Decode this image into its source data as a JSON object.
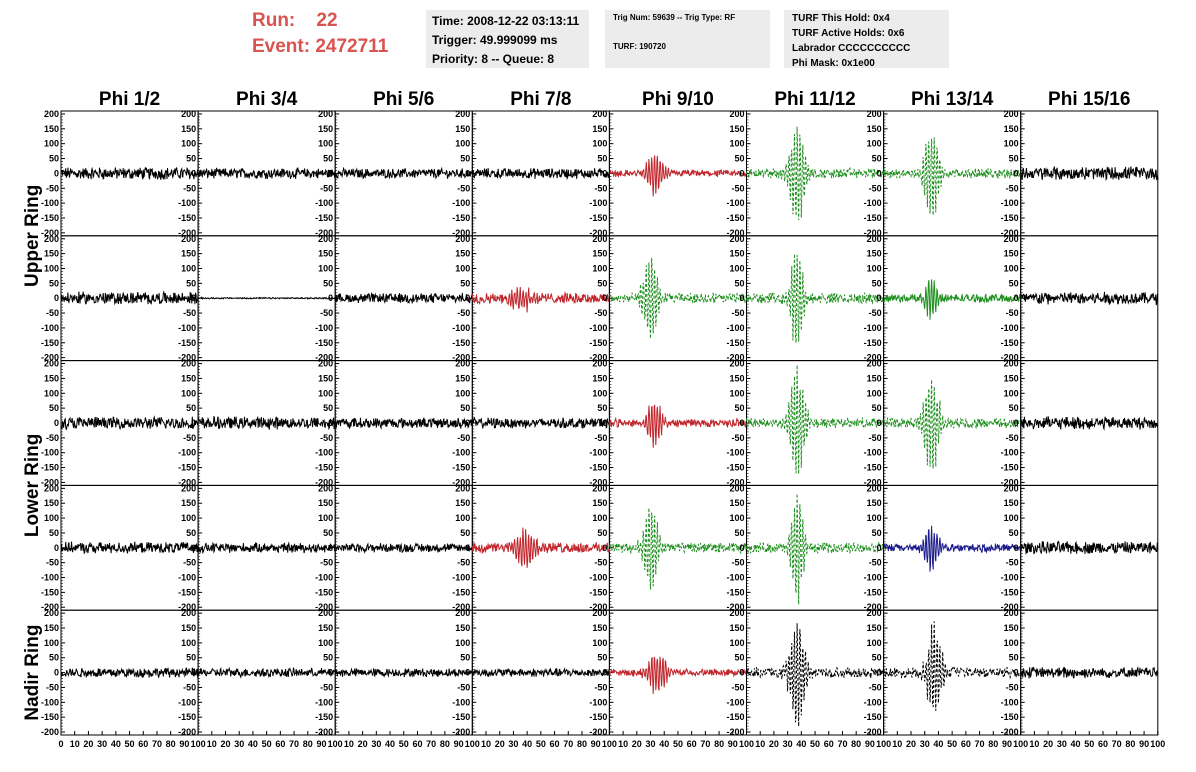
{
  "header": {
    "run_label": "Run:",
    "run_value": "22",
    "event_label": "Event:",
    "event_value": "2472711",
    "time_box": [
      "Time: 2008-12-22 03:13:11",
      "Trigger: 49.999099 ms",
      "Priority: 8 -- Queue: 8"
    ],
    "trig_box": [
      "Trig Num: 59639 -- Trig Type: RF",
      "TURF: 190720"
    ],
    "turf_box": [
      "TURF This Hold: 0x4",
      "TURF Active Holds: 0x6",
      "Labrador CCCCCCCCCC",
      "Phi Mask: 0x1e00"
    ]
  },
  "colors": {
    "black": "#000000",
    "red": "#c0262c",
    "green": "#1f8f1f",
    "blue": "#1a1a8c",
    "header_red": "#d9534f",
    "box_bg": "#ececec"
  },
  "chart_data": {
    "type": "line",
    "columns": [
      "Phi 1/2",
      "Phi 3/4",
      "Phi 5/6",
      "Phi 7/8",
      "Phi 9/10",
      "Phi 11/12",
      "Phi 13/14",
      "Phi 15/16"
    ],
    "row_labels": [
      "Upper Ring",
      "Lower Ring",
      "Nadir Ring"
    ],
    "rows_per_label": [
      2,
      2,
      1
    ],
    "ylim": [
      -210,
      210
    ],
    "yticks": [
      200,
      150,
      100,
      50,
      0,
      -50,
      -100,
      -150,
      -200
    ],
    "xlim": [
      0,
      100
    ],
    "xticks": [
      0,
      10,
      20,
      30,
      40,
      50,
      60,
      70,
      80,
      90,
      100
    ],
    "grid": false,
    "panels": [
      [
        {
          "color": "black",
          "dash": false,
          "noise": 18,
          "pulse": 0,
          "center": 0,
          "width": 0
        },
        {
          "color": "black",
          "dash": false,
          "noise": 15,
          "pulse": 0,
          "center": 0,
          "width": 0
        },
        {
          "color": "black",
          "dash": false,
          "noise": 14,
          "pulse": 0,
          "center": 0,
          "width": 0
        },
        {
          "color": "black",
          "dash": false,
          "noise": 15,
          "pulse": 0,
          "center": 0,
          "width": 0
        },
        {
          "color": "red",
          "dash": false,
          "noise": 10,
          "pulse": 75,
          "center": 33,
          "width": 7
        },
        {
          "color": "green",
          "dash": true,
          "noise": 15,
          "pulse": 185,
          "center": 37,
          "width": 6
        },
        {
          "color": "green",
          "dash": true,
          "noise": 14,
          "pulse": 170,
          "center": 35,
          "width": 6
        },
        {
          "color": "black",
          "dash": false,
          "noise": 20,
          "pulse": 0,
          "center": 0,
          "width": 0
        }
      ],
      [
        {
          "color": "black",
          "dash": false,
          "noise": 18,
          "pulse": 0,
          "center": 0,
          "width": 0
        },
        {
          "color": "black",
          "dash": false,
          "noise": 2,
          "pulse": 0,
          "center": 0,
          "width": 0
        },
        {
          "color": "black",
          "dash": false,
          "noise": 14,
          "pulse": 0,
          "center": 0,
          "width": 0
        },
        {
          "color": "red",
          "dash": false,
          "noise": 15,
          "pulse": 40,
          "center": 35,
          "width": 10
        },
        {
          "color": "green",
          "dash": true,
          "noise": 15,
          "pulse": 150,
          "center": 30,
          "width": 6
        },
        {
          "color": "green",
          "dash": true,
          "noise": 15,
          "pulse": 200,
          "center": 37,
          "width": 5
        },
        {
          "color": "green",
          "dash": false,
          "noise": 12,
          "pulse": 80,
          "center": 35,
          "width": 5
        },
        {
          "color": "black",
          "dash": false,
          "noise": 18,
          "pulse": 0,
          "center": 0,
          "width": 0
        }
      ],
      [
        {
          "color": "black",
          "dash": false,
          "noise": 18,
          "pulse": 0,
          "center": 0,
          "width": 0
        },
        {
          "color": "black",
          "dash": false,
          "noise": 18,
          "pulse": 0,
          "center": 0,
          "width": 0
        },
        {
          "color": "black",
          "dash": false,
          "noise": 15,
          "pulse": 0,
          "center": 0,
          "width": 0
        },
        {
          "color": "black",
          "dash": false,
          "noise": 15,
          "pulse": 0,
          "center": 0,
          "width": 0
        },
        {
          "color": "red",
          "dash": false,
          "noise": 12,
          "pulse": 80,
          "center": 33,
          "width": 6
        },
        {
          "color": "green",
          "dash": true,
          "noise": 15,
          "pulse": 200,
          "center": 37,
          "width": 6
        },
        {
          "color": "green",
          "dash": true,
          "noise": 15,
          "pulse": 190,
          "center": 35,
          "width": 6
        },
        {
          "color": "black",
          "dash": false,
          "noise": 18,
          "pulse": 0,
          "center": 0,
          "width": 0
        }
      ],
      [
        {
          "color": "black",
          "dash": false,
          "noise": 16,
          "pulse": 0,
          "center": 0,
          "width": 0
        },
        {
          "color": "black",
          "dash": false,
          "noise": 14,
          "pulse": 0,
          "center": 0,
          "width": 0
        },
        {
          "color": "black",
          "dash": false,
          "noise": 13,
          "pulse": 0,
          "center": 0,
          "width": 0
        },
        {
          "color": "red",
          "dash": false,
          "noise": 15,
          "pulse": 75,
          "center": 38,
          "width": 8
        },
        {
          "color": "green",
          "dash": true,
          "noise": 15,
          "pulse": 160,
          "center": 30,
          "width": 6
        },
        {
          "color": "green",
          "dash": true,
          "noise": 15,
          "pulse": 200,
          "center": 37,
          "width": 5
        },
        {
          "color": "blue",
          "dash": false,
          "noise": 12,
          "pulse": 80,
          "center": 35,
          "width": 6
        },
        {
          "color": "black",
          "dash": false,
          "noise": 18,
          "pulse": 0,
          "center": 0,
          "width": 0
        }
      ],
      [
        {
          "color": "black",
          "dash": false,
          "noise": 14,
          "pulse": 0,
          "center": 0,
          "width": 0
        },
        {
          "color": "black",
          "dash": false,
          "noise": 13,
          "pulse": 0,
          "center": 0,
          "width": 0
        },
        {
          "color": "black",
          "dash": false,
          "noise": 12,
          "pulse": 0,
          "center": 0,
          "width": 0
        },
        {
          "color": "black",
          "dash": false,
          "noise": 12,
          "pulse": 0,
          "center": 0,
          "width": 0
        },
        {
          "color": "red",
          "dash": false,
          "noise": 10,
          "pulse": 75,
          "center": 35,
          "width": 8
        },
        {
          "color": "black",
          "dash": true,
          "noise": 15,
          "pulse": 200,
          "center": 37,
          "width": 6
        },
        {
          "color": "black",
          "dash": true,
          "noise": 15,
          "pulse": 170,
          "center": 37,
          "width": 6
        },
        {
          "color": "black",
          "dash": false,
          "noise": 16,
          "pulse": 0,
          "center": 0,
          "width": 0
        }
      ]
    ]
  }
}
